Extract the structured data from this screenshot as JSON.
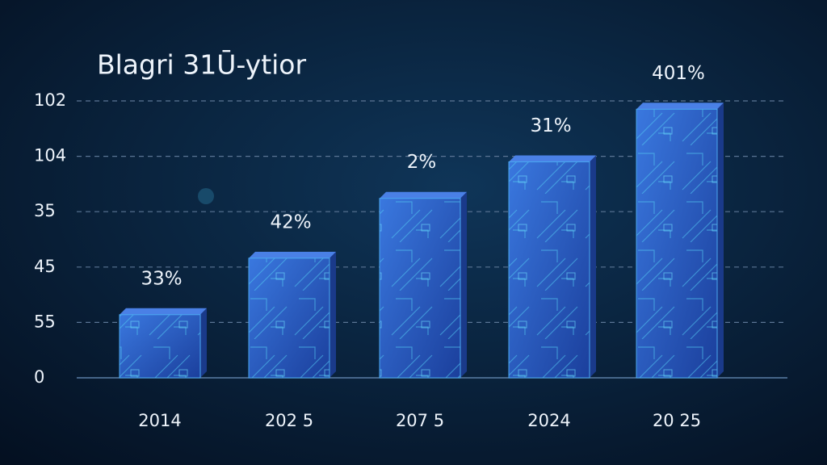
{
  "chart_data": {
    "type": "bar",
    "title": "Blagri 31Ū-ytior",
    "categories": [
      "2014",
      "202 5",
      "207 5",
      "2024",
      "20 25"
    ],
    "values": [
      1.14,
      2.16,
      3.24,
      3.9,
      4.85
    ],
    "annotations": [
      "33%",
      "42%",
      "2%",
      "31%",
      "401%"
    ],
    "color": "#2f63c9",
    "ylim": [
      0,
      5
    ],
    "yticks": [
      0,
      {
        "value": 1,
        "label": "55"
      },
      {
        "value": 2,
        "label": "45"
      },
      {
        "value": 3,
        "label": "35"
      },
      {
        "value": 4,
        "label": "104"
      },
      {
        "value": 5,
        "label": "102"
      }
    ],
    "grid": true
  }
}
